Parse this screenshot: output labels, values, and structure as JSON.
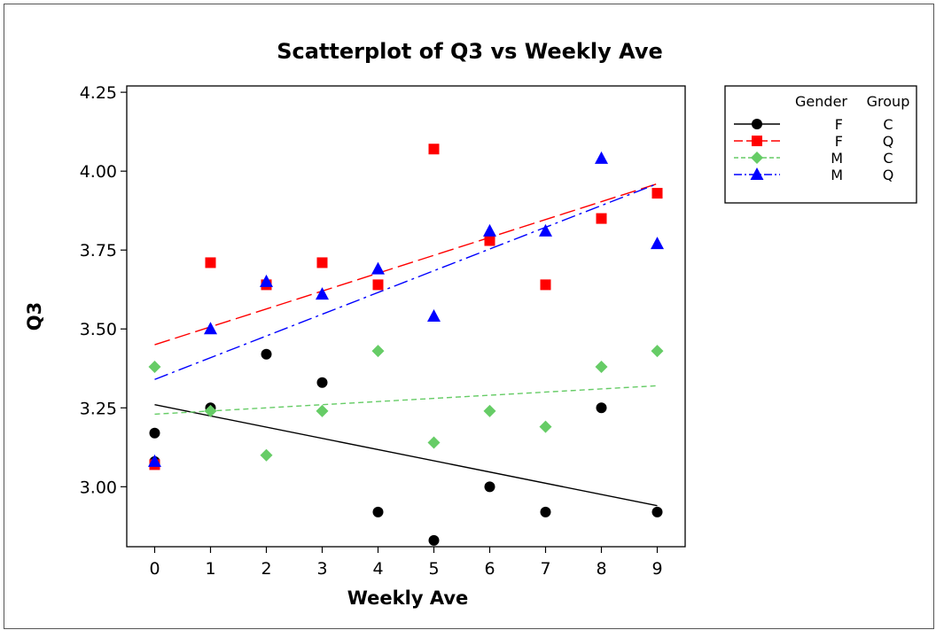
{
  "chart_data": {
    "type": "scatter",
    "title": "Scatterplot of Q3 vs Weekly Ave",
    "xlabel": "Weekly Ave",
    "ylabel": "Q3",
    "xlim": [
      -0.5,
      9.5
    ],
    "ylim": [
      2.81,
      4.27
    ],
    "xticks": [
      "0",
      "1",
      "2",
      "3",
      "4",
      "5",
      "6",
      "7",
      "8",
      "9"
    ],
    "yticks": [
      "3.00",
      "3.25",
      "3.50",
      "3.75",
      "4.00",
      "4.25"
    ],
    "grid": false,
    "legend_position": "top-right",
    "legend_headers": [
      "Gender",
      "Group"
    ],
    "series": [
      {
        "name": "F C",
        "gender": "F",
        "group": "C",
        "color": "#000000",
        "marker": "circle",
        "line_style": "solid",
        "x": [
          0,
          0,
          1,
          2,
          3,
          4,
          5,
          6,
          7,
          8,
          9
        ],
        "y": [
          3.17,
          3.08,
          3.25,
          3.42,
          3.33,
          2.92,
          2.83,
          3.0,
          2.92,
          3.25,
          2.92
        ],
        "fit": [
          [
            0,
            3.26
          ],
          [
            9,
            2.94
          ]
        ]
      },
      {
        "name": "F Q",
        "gender": "F",
        "group": "Q",
        "color": "#ff0000",
        "marker": "square",
        "line_style": "long-dash",
        "x": [
          0,
          1,
          2,
          3,
          4,
          5,
          6,
          7,
          8,
          9
        ],
        "y": [
          3.07,
          3.71,
          3.64,
          3.71,
          3.64,
          4.07,
          3.78,
          3.64,
          3.85,
          3.93
        ],
        "fit": [
          [
            0,
            3.45
          ],
          [
            9,
            3.96
          ]
        ]
      },
      {
        "name": "M C",
        "gender": "M",
        "group": "C",
        "color": "#66cc66",
        "marker": "diamond",
        "line_style": "short-dash",
        "x": [
          0,
          1,
          2,
          3,
          4,
          5,
          6,
          7,
          8,
          9
        ],
        "y": [
          3.38,
          3.24,
          3.1,
          3.24,
          3.43,
          3.14,
          3.24,
          3.19,
          3.38,
          3.43
        ],
        "fit": [
          [
            0,
            3.23
          ],
          [
            9,
            3.32
          ]
        ]
      },
      {
        "name": "M Q",
        "gender": "M",
        "group": "Q",
        "color": "#0000ff",
        "marker": "triangle",
        "line_style": "dash-dot",
        "x": [
          0,
          1,
          2,
          3,
          4,
          5,
          6,
          7,
          8,
          9
        ],
        "y": [
          3.08,
          3.5,
          3.65,
          3.61,
          3.69,
          3.54,
          3.81,
          3.81,
          4.04,
          3.77
        ],
        "fit": [
          [
            0,
            3.34
          ],
          [
            9,
            3.96
          ]
        ]
      }
    ]
  }
}
